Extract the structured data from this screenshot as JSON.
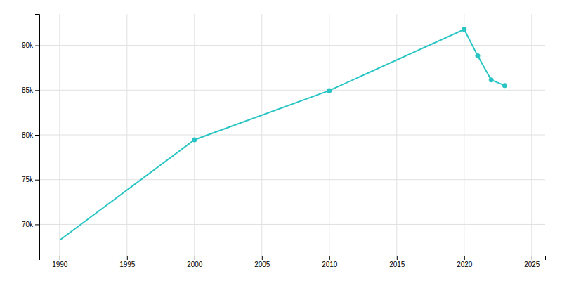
{
  "chart_data": {
    "type": "line",
    "x": [
      1990,
      2000,
      2010,
      2020,
      2021,
      2022,
      2023
    ],
    "series": [
      {
        "type": "line",
        "color": "#29c5c5",
        "values": [
          68223,
          79452,
          84950,
          91793,
          88823,
          86136,
          85521
        ]
      },
      {
        "type": "scatter",
        "color": "#29c5c5",
        "marker": "circle",
        "x": [
          2000,
          2010,
          2020,
          2021,
          2022,
          2023
        ],
        "values": [
          79452,
          84950,
          91793,
          88823,
          86136,
          85521
        ]
      }
    ],
    "xlim": [
      1988.5,
      2026
    ],
    "ylim": [
      66500,
      93500
    ],
    "xticks": [
      1990,
      1995,
      2000,
      2005,
      2010,
      2015,
      2020,
      2025
    ],
    "yticks": [
      {
        "value": 70000,
        "label": "70k"
      },
      {
        "value": 75000,
        "label": "75k"
      },
      {
        "value": 80000,
        "label": "80k"
      },
      {
        "value": 85000,
        "label": "85k"
      },
      {
        "value": 90000,
        "label": "90k"
      }
    ],
    "grid": true
  }
}
